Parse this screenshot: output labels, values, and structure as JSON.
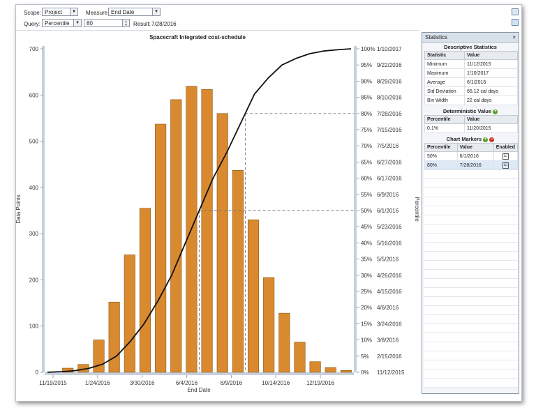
{
  "toolbar": {
    "scope_label": "Scope:",
    "scope_value": "Project",
    "measure_label": "Measure:",
    "measure_value": "End Date",
    "query_label": "Query:",
    "query_value": "Percentile",
    "query_input": "80",
    "result_label": "Result:",
    "result_value": "7/28/2016"
  },
  "statistics": {
    "panel_title": "Statistics",
    "close_symbol": "×",
    "descriptive_title": "Descriptive Statistics",
    "descriptive_headers": [
      "Statistic",
      "Value"
    ],
    "descriptive_rows": [
      {
        "statistic": "Minimum",
        "value": "11/12/2015"
      },
      {
        "statistic": "Maximum",
        "value": "1/10/2017"
      },
      {
        "statistic": "Average",
        "value": "6/1/2016"
      },
      {
        "statistic": "Std Deviation",
        "value": "66.12 cal days"
      },
      {
        "statistic": "Bin Width",
        "value": "22 cal days"
      }
    ],
    "deterministic_title": "Deterministic Value",
    "deterministic_headers": [
      "Percentile",
      "Value"
    ],
    "deterministic_rows": [
      {
        "percentile": "0.1%",
        "value": "11/20/2015"
      }
    ],
    "markers_title": "Chart Markers",
    "markers_headers": [
      "Percentile",
      "Value",
      "Enabled"
    ],
    "markers_rows": [
      {
        "percentile": "50%",
        "value": "6/1/2016",
        "enabled": "☑"
      },
      {
        "percentile": "80%",
        "value": "7/28/2016",
        "enabled": "☑"
      }
    ]
  },
  "chart_data": {
    "type": "bar",
    "title": "Spacecraft Integrated cost-schedule",
    "xlabel": "End Date",
    "ylabel": "Data Points",
    "y2label": "Percentile",
    "ylim": [
      0,
      700
    ],
    "yticks": [
      0,
      100,
      200,
      300,
      400,
      500,
      600,
      700
    ],
    "xticks": [
      "11/19/2015",
      "1/24/2016",
      "3/30/2016",
      "6/4/2016",
      "8/9/2016",
      "10/14/2016",
      "12/19/2016"
    ],
    "bar_color": "#d98a2f",
    "values": [
      0,
      9,
      17,
      70,
      152,
      254,
      355,
      537,
      590,
      619,
      612,
      560,
      437,
      330,
      205,
      128,
      65,
      23,
      10,
      4
    ],
    "right_ticks": [
      {
        "pct": "0%",
        "date": "11/12/2015"
      },
      {
        "pct": "5%",
        "date": "2/15/2016"
      },
      {
        "pct": "10%",
        "date": "3/8/2016"
      },
      {
        "pct": "15%",
        "date": "3/24/2016"
      },
      {
        "pct": "20%",
        "date": "4/6/2016"
      },
      {
        "pct": "25%",
        "date": "4/15/2016"
      },
      {
        "pct": "30%",
        "date": "4/26/2016"
      },
      {
        "pct": "35%",
        "date": "5/5/2016"
      },
      {
        "pct": "40%",
        "date": "5/16/2016"
      },
      {
        "pct": "45%",
        "date": "5/23/2016"
      },
      {
        "pct": "50%",
        "date": "6/1/2016"
      },
      {
        "pct": "55%",
        "date": "6/9/2016"
      },
      {
        "pct": "60%",
        "date": "6/17/2016"
      },
      {
        "pct": "65%",
        "date": "6/27/2016"
      },
      {
        "pct": "70%",
        "date": "7/5/2016"
      },
      {
        "pct": "75%",
        "date": "7/15/2016"
      },
      {
        "pct": "80%",
        "date": "7/28/2016"
      },
      {
        "pct": "85%",
        "date": "8/10/2016"
      },
      {
        "pct": "90%",
        "date": "8/29/2016"
      },
      {
        "pct": "95%",
        "date": "9/22/2016"
      },
      {
        "pct": "100%",
        "date": "1/10/2017"
      }
    ],
    "markers": [
      {
        "percentile": 50,
        "date": "6/1/2016"
      },
      {
        "percentile": 80,
        "date": "7/28/2016"
      }
    ],
    "cdf_percent": [
      0,
      0.2,
      0.5,
      1.2,
      2.5,
      5,
      9.5,
      15,
      22,
      30,
      40,
      50,
      60,
      68,
      77,
      86,
      91,
      95,
      97,
      98.5,
      99.3,
      99.7,
      100
    ]
  }
}
